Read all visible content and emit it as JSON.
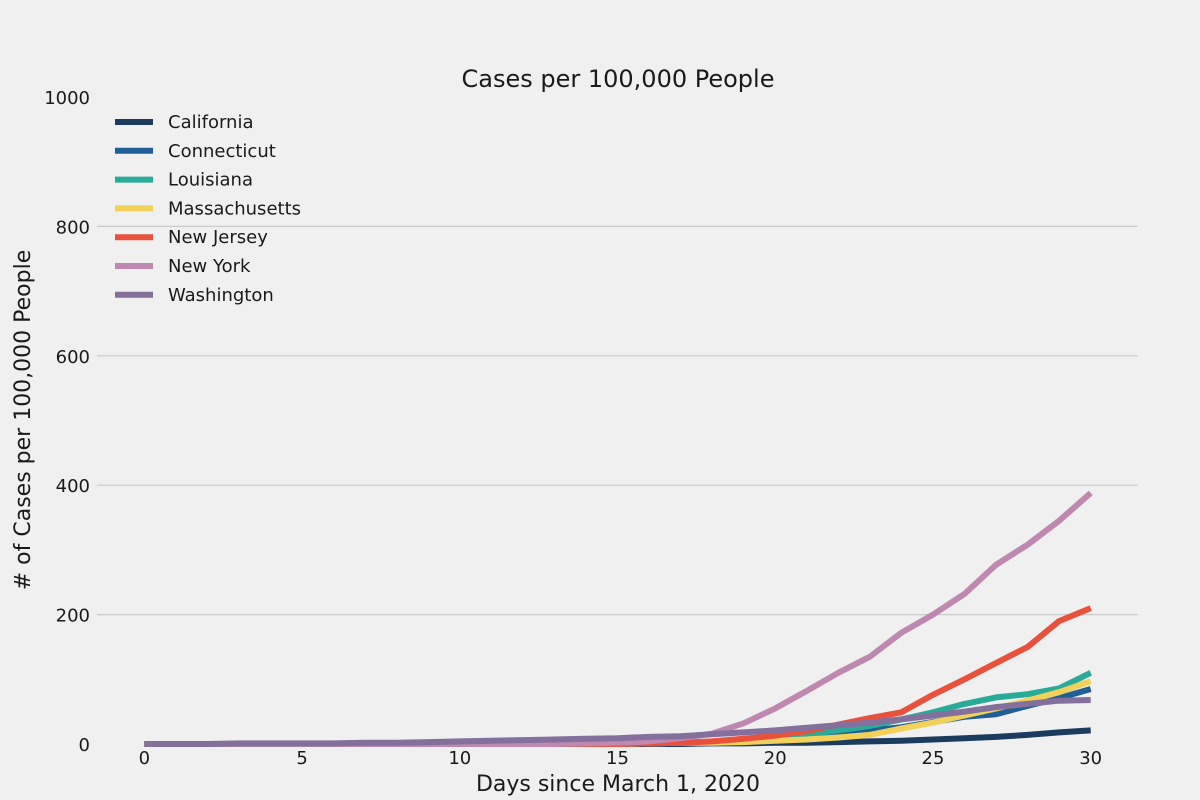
{
  "chart_data": {
    "type": "line",
    "title": "Cases per 100,000 People",
    "xlabel": "Days since March 1, 2020",
    "ylabel": "# of Cases per 100,000 People",
    "xlim": [
      -1.5,
      31.5
    ],
    "ylim": [
      0,
      1000
    ],
    "xticks": [
      0,
      5,
      10,
      15,
      20,
      25,
      30
    ],
    "yticks": [
      0,
      200,
      400,
      600,
      800,
      1000
    ],
    "grid": "horizontal",
    "legend": "top-left",
    "x": [
      0,
      1,
      2,
      3,
      4,
      5,
      6,
      7,
      8,
      9,
      10,
      11,
      12,
      13,
      14,
      15,
      16,
      17,
      18,
      19,
      20,
      21,
      22,
      23,
      24,
      25,
      26,
      27,
      28,
      29,
      30
    ],
    "series": [
      {
        "name": "California",
        "color": "#1b3c5e",
        "values": [
          0,
          0,
          0,
          0,
          0,
          0,
          0,
          0,
          0,
          0,
          0,
          0,
          0,
          0,
          0,
          0,
          0,
          0,
          1,
          1,
          2,
          2,
          3,
          4,
          5,
          7,
          9,
          11,
          14,
          18,
          21
        ]
      },
      {
        "name": "Connecticut",
        "color": "#1f5f95",
        "values": [
          0,
          0,
          0,
          0,
          0,
          0,
          0,
          0,
          0,
          0,
          0,
          0,
          0,
          0,
          0,
          0,
          1,
          2,
          3,
          4,
          6,
          10,
          16,
          21,
          26,
          34,
          42,
          46,
          59,
          71,
          85
        ]
      },
      {
        "name": "Louisiana",
        "color": "#2aaa98",
        "values": [
          0,
          0,
          0,
          0,
          0,
          0,
          0,
          0,
          0,
          0,
          0,
          0,
          0,
          0,
          0,
          0,
          1,
          2,
          3,
          5,
          9,
          15,
          21,
          28,
          38,
          49,
          62,
          72,
          77,
          86,
          110
        ]
      },
      {
        "name": "Massachusetts",
        "color": "#f2d15a",
        "values": [
          0,
          0,
          0,
          0,
          0,
          0,
          0,
          0,
          0,
          0,
          0,
          0,
          0,
          0,
          0,
          0,
          1,
          2,
          2,
          3,
          5,
          7,
          10,
          14,
          24,
          33,
          44,
          55,
          67,
          80,
          97
        ]
      },
      {
        "name": "New Jersey",
        "color": "#e8513b",
        "values": [
          0,
          0,
          0,
          0,
          0,
          0,
          0,
          0,
          0,
          0,
          0,
          0,
          0,
          0,
          0,
          0,
          1,
          2,
          4,
          8,
          13,
          20,
          30,
          40,
          49,
          76,
          100,
          125,
          150,
          190,
          210
        ]
      },
      {
        "name": "New York",
        "color": "#be88b0",
        "values": [
          0,
          0,
          0,
          0,
          0,
          0,
          0,
          0,
          0,
          0,
          0,
          0,
          0,
          0,
          1,
          2,
          4,
          9,
          16,
          32,
          55,
          82,
          110,
          135,
          172,
          200,
          232,
          277,
          308,
          345,
          388
        ]
      },
      {
        "name": "Washington",
        "color": "#83709c",
        "values": [
          0,
          0,
          0,
          1,
          1,
          1,
          1,
          2,
          2,
          3,
          4,
          5,
          6,
          7,
          8,
          9,
          11,
          12,
          15,
          18,
          21,
          25,
          29,
          33,
          38,
          44,
          50,
          57,
          62,
          67,
          68
        ]
      }
    ]
  }
}
